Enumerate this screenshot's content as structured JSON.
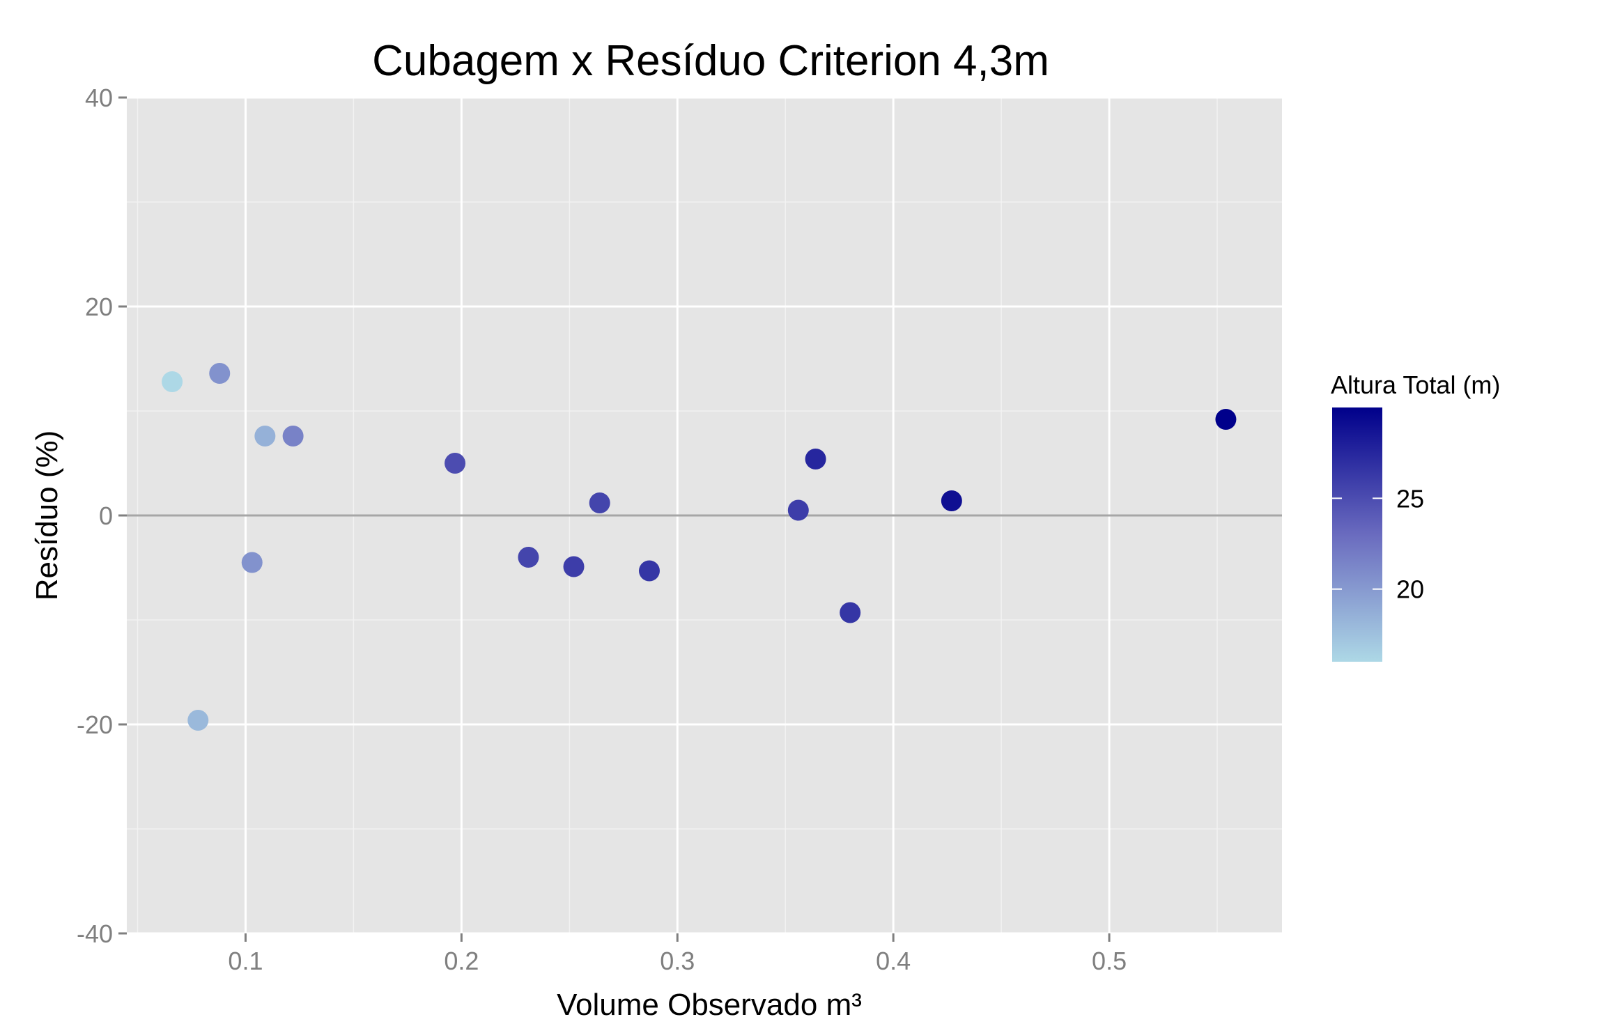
{
  "chart_data": {
    "type": "scatter",
    "title": "Cubagem x Resíduo Criterion 4,3m",
    "xlabel": "Volume Observado m³",
    "ylabel": "Resíduo (%)",
    "xlim": [
      0.045,
      0.58
    ],
    "ylim": [
      -40,
      40
    ],
    "x_ticks": [
      0.1,
      0.2,
      0.3,
      0.4,
      0.5
    ],
    "x_tick_labels": [
      "0.1",
      "0.2",
      "0.3",
      "0.4",
      "0.5"
    ],
    "y_ticks": [
      -40,
      -20,
      0,
      20,
      40
    ],
    "y_tick_labels": [
      "-40",
      "-20",
      "0",
      "20",
      "40"
    ],
    "grid": true,
    "reference_line_y": 0,
    "points": [
      {
        "x": 0.066,
        "y": 12.8,
        "altura": 16.0
      },
      {
        "x": 0.078,
        "y": -19.6,
        "altura": 18.0
      },
      {
        "x": 0.088,
        "y": 13.6,
        "altura": 20.5
      },
      {
        "x": 0.103,
        "y": -4.5,
        "altura": 20.5
      },
      {
        "x": 0.109,
        "y": 7.6,
        "altura": 18.5
      },
      {
        "x": 0.122,
        "y": 7.6,
        "altura": 21.5
      },
      {
        "x": 0.197,
        "y": 5.0,
        "altura": 25.0
      },
      {
        "x": 0.231,
        "y": -4.0,
        "altura": 25.5
      },
      {
        "x": 0.252,
        "y": -4.9,
        "altura": 26.0
      },
      {
        "x": 0.264,
        "y": 1.2,
        "altura": 25.5
      },
      {
        "x": 0.287,
        "y": -5.3,
        "altura": 26.5
      },
      {
        "x": 0.356,
        "y": 0.5,
        "altura": 26.0
      },
      {
        "x": 0.364,
        "y": 5.4,
        "altura": 27.5
      },
      {
        "x": 0.38,
        "y": -9.3,
        "altura": 26.5
      },
      {
        "x": 0.427,
        "y": 1.4,
        "altura": 29.0
      },
      {
        "x": 0.554,
        "y": 9.2,
        "altura": 30.0
      }
    ],
    "legend": {
      "title": "Altura Total (m)",
      "position": "right",
      "range": [
        16,
        30
      ],
      "ticks": [
        20,
        25
      ],
      "tick_labels": [
        "20",
        "25"
      ],
      "color_low": "#add8e6",
      "color_mid": "#6a6bbf",
      "color_high": "#00008b"
    },
    "colors": {
      "panel_background": "#e5e5e5",
      "grid_major": "#ffffff",
      "grid_minor": "#f2f2f2",
      "reference_line": "#a6a6a6",
      "tick_color": "#7f7f7f"
    }
  }
}
